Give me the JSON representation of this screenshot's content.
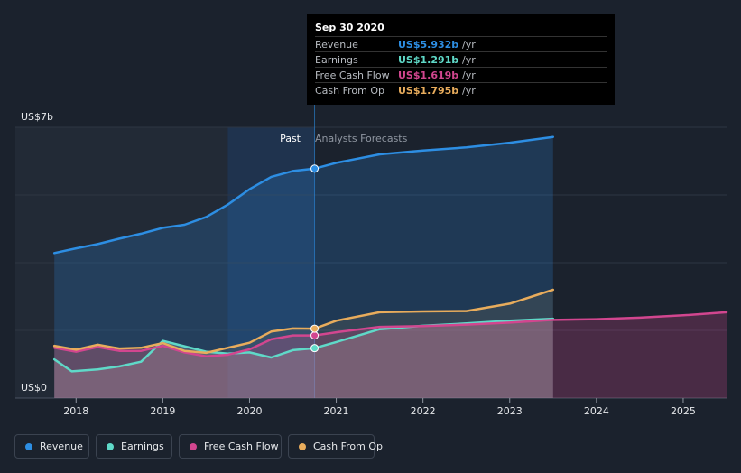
{
  "chart_data": {
    "type": "area",
    "y_axis": {
      "label_top": "US$7b",
      "label_bottom": "US$0",
      "ylim": [
        0,
        7
      ]
    },
    "x_ticks": [
      "2018",
      "2019",
      "2020",
      "2021",
      "2022",
      "2023",
      "2024",
      "2025"
    ],
    "xlim": [
      2017.3,
      2025.5
    ],
    "past_label": "Past",
    "forecast_label": "Analysts Forecasts",
    "divider_x": 2020.75,
    "highlight_start_x": 2019.75,
    "series": [
      {
        "name": "Revenue",
        "color": "#2d8ee3",
        "x": [
          2017.75,
          2018.0,
          2018.25,
          2018.5,
          2018.75,
          2019.0,
          2019.25,
          2019.5,
          2019.75,
          2020.0,
          2020.25,
          2020.5,
          2020.75,
          2021.0,
          2021.5,
          2022.0,
          2022.5,
          2023.0,
          2023.5
        ],
        "values": [
          3.75,
          3.87,
          3.98,
          4.12,
          4.25,
          4.4,
          4.48,
          4.68,
          5.0,
          5.4,
          5.72,
          5.87,
          5.932,
          6.08,
          6.3,
          6.4,
          6.48,
          6.6,
          6.75
        ]
      },
      {
        "name": "Earnings",
        "color": "#5fd9c8",
        "x": [
          2017.75,
          2017.95,
          2018.25,
          2018.5,
          2018.75,
          2019.0,
          2019.25,
          2019.5,
          2019.75,
          2020.0,
          2020.25,
          2020.5,
          2020.75,
          2021.0,
          2021.5,
          2022.0,
          2022.5,
          2023.0,
          2023.5
        ],
        "values": [
          1.0,
          0.69,
          0.74,
          0.82,
          0.94,
          1.48,
          1.34,
          1.2,
          1.15,
          1.18,
          1.05,
          1.24,
          1.291,
          1.45,
          1.78,
          1.87,
          1.93,
          2.0,
          2.05
        ]
      },
      {
        "name": "Free Cash Flow",
        "color": "#d2468f",
        "x": [
          2017.75,
          2018.0,
          2018.25,
          2018.5,
          2018.75,
          2019.0,
          2019.25,
          2019.5,
          2019.75,
          2020.0,
          2020.25,
          2020.5,
          2020.75,
          2021.0,
          2021.5,
          2022.0,
          2022.5,
          2023.0,
          2023.5,
          2024.0,
          2024.5,
          2025.0,
          2025.5
        ],
        "values": [
          1.3,
          1.2,
          1.32,
          1.22,
          1.22,
          1.35,
          1.18,
          1.08,
          1.12,
          1.26,
          1.52,
          1.62,
          1.619,
          1.7,
          1.84,
          1.86,
          1.9,
          1.95,
          2.02,
          2.04,
          2.08,
          2.14,
          2.22
        ]
      },
      {
        "name": "Cash From Op",
        "color": "#e8ac5c",
        "x": [
          2017.75,
          2018.0,
          2018.25,
          2018.5,
          2018.75,
          2019.0,
          2019.25,
          2019.5,
          2019.75,
          2020.0,
          2020.25,
          2020.5,
          2020.75,
          2021.0,
          2021.5,
          2022.0,
          2022.5,
          2023.0,
          2023.5
        ],
        "values": [
          1.35,
          1.25,
          1.38,
          1.28,
          1.3,
          1.42,
          1.22,
          1.17,
          1.3,
          1.43,
          1.72,
          1.8,
          1.795,
          2.0,
          2.22,
          2.24,
          2.25,
          2.44,
          2.8
        ]
      }
    ]
  },
  "tooltip": {
    "date": "Sep 30 2020",
    "rows": [
      {
        "label": "Revenue",
        "value": "US$5.932b",
        "unit": "/yr",
        "color": "#2d8ee3"
      },
      {
        "label": "Earnings",
        "value": "US$1.291b",
        "unit": "/yr",
        "color": "#5fd9c8"
      },
      {
        "label": "Free Cash Flow",
        "value": "US$1.619b",
        "unit": "/yr",
        "color": "#d2468f"
      },
      {
        "label": "Cash From Op",
        "value": "US$1.795b",
        "unit": "/yr",
        "color": "#e8ac5c"
      }
    ]
  },
  "legend": [
    {
      "label": "Revenue",
      "color": "#2d8ee3"
    },
    {
      "label": "Earnings",
      "color": "#5fd9c8"
    },
    {
      "label": "Free Cash Flow",
      "color": "#d2468f"
    },
    {
      "label": "Cash From Op",
      "color": "#e8ac5c"
    }
  ]
}
